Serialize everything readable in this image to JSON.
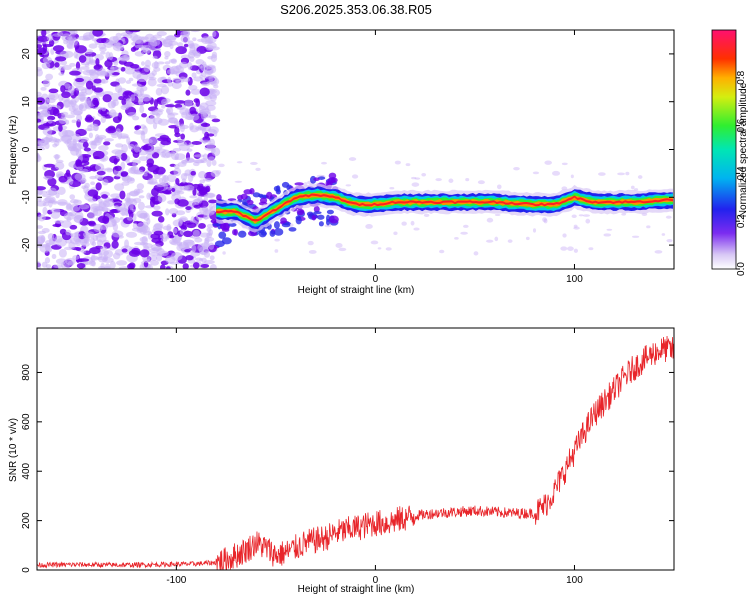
{
  "title": "S206.2025.353.06.38.R05",
  "colors": {
    "snr_line": "#e8252a",
    "dots_strong": "#6b00e8",
    "dots_weak": "#c9b0f6"
  },
  "chart_data": [
    {
      "type": "heatmap",
      "xlabel": "Height of straight line (km)",
      "ylabel": "Frequency (Hz)",
      "xlim": [
        -170,
        150
      ],
      "ylim": [
        -25,
        25
      ],
      "xticks": [
        -100,
        0,
        100
      ],
      "yticks": [
        -20,
        -10,
        0,
        10,
        20
      ],
      "grid": false,
      "colorbar": {
        "label": "Normalized spectral amplitude",
        "range": [
          0,
          1
        ],
        "ticks": [
          0.0,
          0.2,
          0.4,
          0.6,
          0.8
        ],
        "tick_labels": [
          "0.0",
          "0.2",
          "0.4",
          "0.6",
          "0.8"
        ]
      },
      "ridge": {
        "description_points_x": [
          -80,
          -70,
          -60,
          -50,
          -40,
          -30,
          -20,
          -10,
          0,
          10,
          20,
          40,
          60,
          80,
          90,
          100,
          110,
          130,
          150
        ],
        "description_points_y": [
          -13,
          -13,
          -15,
          -12.5,
          -10,
          -9.5,
          -10,
          -11.5,
          -11.5,
          -11,
          -11,
          -11,
          -11,
          -11.5,
          -11.5,
          -10,
          -11,
          -11,
          -10.5
        ]
      }
    },
    {
      "type": "line",
      "xlabel": "Height of straight line (km)",
      "ylabel": "SNR (10 * v/v)",
      "xlim": [
        -170,
        150
      ],
      "ylim": [
        0,
        980
      ],
      "xticks": [
        -100,
        0,
        100
      ],
      "yticks": [
        0,
        200,
        400,
        600,
        800
      ],
      "grid": false,
      "series": [
        {
          "x": [
            -170,
            -150,
            -130,
            -110,
            -90,
            -80,
            -75,
            -70,
            -65,
            -60,
            -55,
            -50,
            -45,
            -40,
            -35,
            -30,
            -25,
            -20,
            -15,
            -10,
            -5,
            0,
            5,
            10,
            20,
            30,
            40,
            50,
            60,
            70,
            80,
            85,
            90,
            95,
            100,
            105,
            110,
            115,
            120,
            125,
            130,
            135,
            140,
            145,
            150
          ],
          "y": [
            20,
            22,
            20,
            22,
            25,
            30,
            40,
            60,
            80,
            110,
            90,
            60,
            70,
            90,
            110,
            120,
            130,
            150,
            160,
            170,
            180,
            190,
            190,
            200,
            220,
            230,
            235,
            240,
            235,
            230,
            230,
            260,
            320,
            400,
            480,
            560,
            630,
            680,
            730,
            780,
            820,
            850,
            880,
            895,
            890
          ]
        }
      ]
    }
  ]
}
